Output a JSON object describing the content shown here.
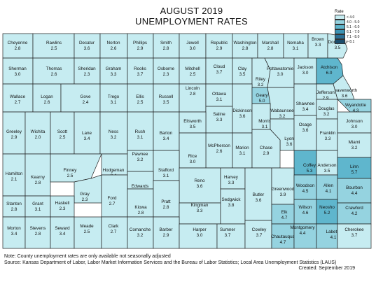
{
  "title": "AUGUST 2019",
  "subtitle": "UNEMPLOYMENT RATES",
  "legend": {
    "title": "Rate",
    "items": [
      {
        "label": "< 4.0",
        "color": "#c6ecf1"
      },
      {
        "label": "4.0 - 5.0",
        "color": "#95d3e0"
      },
      {
        "label": "5.1 - 6.0",
        "color": "#5fb6cd"
      },
      {
        "label": "6.1 - 7.0",
        "color": "#3c93b4"
      },
      {
        "label": "7.1 - 8.0",
        "color": "#2a6e94"
      },
      {
        "label": "> 8.1",
        "color": "#1a4c6c"
      }
    ]
  },
  "note": "Note: County unemployment rates are only available not seasonally adjusted",
  "source": "Source: Kansas Department of Labor, Labor Market Information Services and the Bureau of Labor Statistics; Local Area Unemployment Statistics (LAUS)",
  "created": "Created:  September 2019",
  "counties": [
    {
      "name": "Cheyenne",
      "rate": "2.8"
    },
    {
      "name": "Rawlins",
      "rate": "2.5"
    },
    {
      "name": "Decatur",
      "rate": "3.6"
    },
    {
      "name": "Norton",
      "rate": "2.6"
    },
    {
      "name": "Phillips",
      "rate": "2.9"
    },
    {
      "name": "Smith",
      "rate": "2.8"
    },
    {
      "name": "Jewell",
      "rate": "3.0"
    },
    {
      "name": "Republic",
      "rate": "2.9"
    },
    {
      "name": "Washington",
      "rate": "2.8"
    },
    {
      "name": "Marshall",
      "rate": "2.8"
    },
    {
      "name": "Nemaha",
      "rate": "3.1"
    },
    {
      "name": "Brown",
      "rate": "3.3"
    },
    {
      "name": "Doniphan",
      "rate": "3.5"
    },
    {
      "name": "Sherman",
      "rate": "3.0"
    },
    {
      "name": "Thomas",
      "rate": "2.6"
    },
    {
      "name": "Sheridan",
      "rate": "2.3"
    },
    {
      "name": "Graham",
      "rate": "3.3"
    },
    {
      "name": "Rooks",
      "rate": "3.7"
    },
    {
      "name": "Osborne",
      "rate": "2.3"
    },
    {
      "name": "Mitchell",
      "rate": "2.5"
    },
    {
      "name": "Cloud",
      "rate": "3.7"
    },
    {
      "name": "Clay",
      "rate": "3.5"
    },
    {
      "name": "Riley",
      "rate": "3.2"
    },
    {
      "name": "Pottawatomie",
      "rate": "3.0"
    },
    {
      "name": "Jackson",
      "rate": "3.0"
    },
    {
      "name": "Atchison",
      "rate": "6.0"
    },
    {
      "name": "Leavenworth",
      "rate": "3.6"
    },
    {
      "name": "Jefferson",
      "rate": "2.9"
    },
    {
      "name": "Wyandotte",
      "rate": "4.3"
    },
    {
      "name": "Wallace",
      "rate": "2.7"
    },
    {
      "name": "Logan",
      "rate": "2.6"
    },
    {
      "name": "Gove",
      "rate": "2.4"
    },
    {
      "name": "Trego",
      "rate": "3.1"
    },
    {
      "name": "Ellis",
      "rate": "2.5"
    },
    {
      "name": "Russell",
      "rate": "3.5"
    },
    {
      "name": "Lincoln",
      "rate": "2.8"
    },
    {
      "name": "Ottawa",
      "rate": "3.1"
    },
    {
      "name": "Saline",
      "rate": "3.3"
    },
    {
      "name": "Dickinson",
      "rate": "3.6"
    },
    {
      "name": "Geary",
      "rate": "5.0"
    },
    {
      "name": "Wabaunsee",
      "rate": "3.2"
    },
    {
      "name": "Shawnee",
      "rate": "3.4"
    },
    {
      "name": "Douglas",
      "rate": "3.2"
    },
    {
      "name": "Johnson",
      "rate": "3.0"
    },
    {
      "name": "Greeley",
      "rate": "2.9"
    },
    {
      "name": "Wichita",
      "rate": "2.0"
    },
    {
      "name": "Scott",
      "rate": "2.5"
    },
    {
      "name": "Lane",
      "rate": "3.4"
    },
    {
      "name": "Ness",
      "rate": "3.2"
    },
    {
      "name": "Rush",
      "rate": "3.1"
    },
    {
      "name": "Barton",
      "rate": "3.4"
    },
    {
      "name": "Ellsworth",
      "rate": "3.5"
    },
    {
      "name": "McPherson",
      "rate": "2.6"
    },
    {
      "name": "Marion",
      "rate": "3.1"
    },
    {
      "name": "Morris",
      "rate": "3.1"
    },
    {
      "name": "Lyon",
      "rate": "3.6"
    },
    {
      "name": "Osage",
      "rate": "3.6"
    },
    {
      "name": "Franklin",
      "rate": "3.3"
    },
    {
      "name": "Miami",
      "rate": "3.2"
    },
    {
      "name": "Chase",
      "rate": "2.9"
    },
    {
      "name": "Rice",
      "rate": "3.0"
    },
    {
      "name": "Hamilton",
      "rate": "2.1"
    },
    {
      "name": "Kearny",
      "rate": "2.8"
    },
    {
      "name": "Finney",
      "rate": "2.5"
    },
    {
      "name": "Hodgeman",
      "rate": "2.4"
    },
    {
      "name": "Pawnee",
      "rate": "3.2"
    },
    {
      "name": "Stafford",
      "rate": "3.1"
    },
    {
      "name": "Reno",
      "rate": "3.6"
    },
    {
      "name": "Harvey",
      "rate": "3.3"
    },
    {
      "name": "Coffey",
      "rate": "5.3"
    },
    {
      "name": "Anderson",
      "rate": "3.5"
    },
    {
      "name": "Linn",
      "rate": "5.7"
    },
    {
      "name": "Gray",
      "rate": "2.3"
    },
    {
      "name": "Edwards",
      "rate": "2.6"
    },
    {
      "name": "Ford",
      "rate": "2.7"
    },
    {
      "name": "Kiowa",
      "rate": "2.8"
    },
    {
      "name": "Pratt",
      "rate": "2.8"
    },
    {
      "name": "Kingman",
      "rate": "3.3"
    },
    {
      "name": "Sedgwick",
      "rate": "3.8"
    },
    {
      "name": "Butler",
      "rate": "3.6"
    },
    {
      "name": "Greenwood",
      "rate": "3.9"
    },
    {
      "name": "Woodson",
      "rate": "4.5"
    },
    {
      "name": "Allen",
      "rate": "4.1"
    },
    {
      "name": "Bourbon",
      "rate": "4.4"
    },
    {
      "name": "Stanton",
      "rate": "2.8"
    },
    {
      "name": "Grant",
      "rate": "3.1"
    },
    {
      "name": "Haskell",
      "rate": "2.3"
    },
    {
      "name": "Wilson",
      "rate": "4.6"
    },
    {
      "name": "Neosho",
      "rate": "5.2"
    },
    {
      "name": "Crawford",
      "rate": "4.2"
    },
    {
      "name": "Morton",
      "rate": "3.4"
    },
    {
      "name": "Stevens",
      "rate": "2.8"
    },
    {
      "name": "Seward",
      "rate": "3.4"
    },
    {
      "name": "Meade",
      "rate": "2.5"
    },
    {
      "name": "Clark",
      "rate": "2.7"
    },
    {
      "name": "Comanche",
      "rate": "3.2"
    },
    {
      "name": "Barber",
      "rate": "2.9"
    },
    {
      "name": "Harper",
      "rate": "3.0"
    },
    {
      "name": "Sumner",
      "rate": "3.7"
    },
    {
      "name": "Cowley",
      "rate": "3.7"
    },
    {
      "name": "Elk",
      "rate": "4.7"
    },
    {
      "name": "Chautauqua",
      "rate": "4.7"
    },
    {
      "name": "Montgomery",
      "rate": "4.4"
    },
    {
      "name": "Labette",
      "rate": "4.1"
    },
    {
      "name": "Cherokee",
      "rate": "3.7"
    }
  ]
}
